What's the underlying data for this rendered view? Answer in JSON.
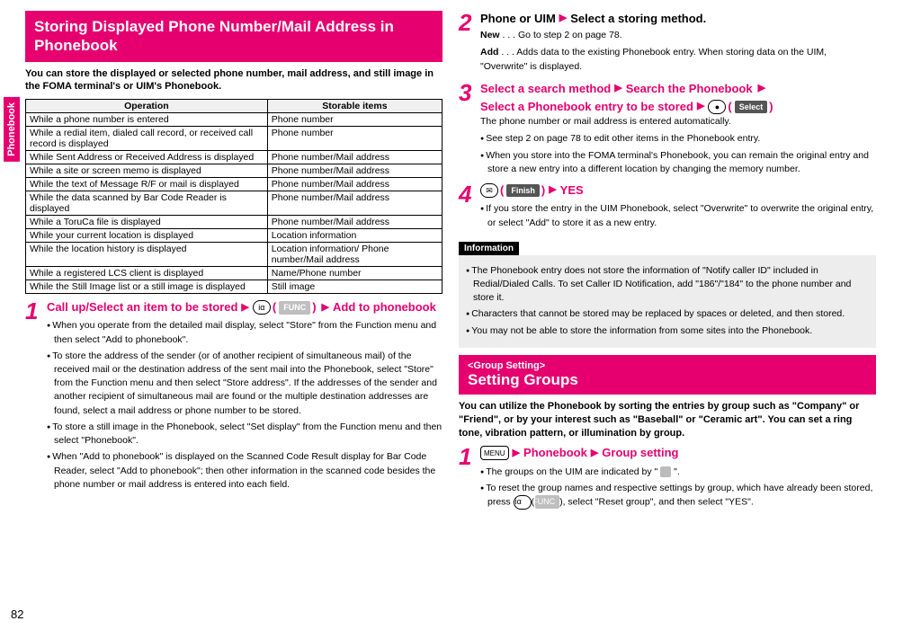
{
  "colors": {
    "brand": "#e6006f",
    "grey_label": "#bfbfbf",
    "info_bg": "#ededed"
  },
  "sideTab": "Phonebook",
  "pageNumber": "82",
  "left": {
    "heading": "Storing Displayed Phone Number/Mail Address in Phonebook",
    "lead": "You can store the displayed or selected phone number, mail address, and still image in the FOMA terminal's or UIM's Phonebook.",
    "table": {
      "headers": [
        "Operation",
        "Storable items"
      ],
      "rows": [
        [
          "While a phone number is entered",
          "Phone number"
        ],
        [
          "While a redial item, dialed call record, or received call record is displayed",
          "Phone number"
        ],
        [
          "While Sent Address or Received Address is displayed",
          "Phone number/Mail address"
        ],
        [
          "While a site or screen memo is displayed",
          "Phone number/Mail address"
        ],
        [
          "While the text of Message R/F or mail is displayed",
          "Phone number/Mail address"
        ],
        [
          "While the data scanned by Bar Code Reader is displayed",
          "Phone number/Mail address"
        ],
        [
          "While a ToruCa file is displayed",
          "Phone number/Mail address"
        ],
        [
          "While your current location is displayed",
          "Location information"
        ],
        [
          "While the location history is displayed",
          "Location information/\nPhone number/Mail address"
        ],
        [
          "While a registered LCS client is displayed",
          "Name/Phone number"
        ],
        [
          "While the Still Image list or a still image is displayed",
          "Still image"
        ]
      ]
    },
    "step1": {
      "num": "1",
      "part1": "Call up/Select an item to be stored",
      "keyGlyph": "iα",
      "keyLabel": "FUNC",
      "part2": "Add to phonebook",
      "bullets": [
        "When you operate from the detailed mail display, select \"Store\" from the Function menu and then select \"Add to phonebook\".",
        "To store the address of the sender (or of another recipient of simultaneous mail) of the received mail or the destination address of the sent mail into the Phonebook, select \"Store\" from the Function menu and then select \"Store address\". If the addresses of the sender and another recipient of simultaneous mail are found or the multiple destination addresses are found, select a mail address or phone number to be stored.",
        "To store a still image in the Phonebook, select \"Set display\" from the Function menu and then select \"Phonebook\".",
        "When \"Add to phonebook\" is displayed on the Scanned Code Result display for Bar Code Reader, select \"Add to phonebook\"; then other information in the scanned code besides the phone number or mail address is entered into each field."
      ]
    }
  },
  "right": {
    "step2": {
      "num": "2",
      "titleA": "Phone or UIM",
      "titleB": "Select a storing method.",
      "defNewLabel": "New",
      "defNewText": " . . . Go to step 2 on page 78.",
      "defAddLabel": "Add",
      "defAddText": " . . . Adds data to the existing Phonebook entry. When storing data on the UIM, \"Overwrite\" is displayed."
    },
    "step3": {
      "num": "3",
      "l1a": "Select a search method",
      "l1b": "Search the Phonebook",
      "l2": "Select a Phonebook entry to be stored",
      "keyGlyph": "●",
      "keyLabel": "Select",
      "sub": "The phone number or mail address is entered automatically.",
      "bullets": [
        "See step 2 on page 78 to edit other items in the Phonebook entry.",
        "When you store into the FOMA terminal's Phonebook, you can remain the original entry and store a new entry into a different location by changing the memory number."
      ]
    },
    "step4": {
      "num": "4",
      "keyGlyph": "✉",
      "keyLabel": "Finish",
      "yes": "YES",
      "bullets": [
        "If you store the entry in the UIM Phonebook, select \"Overwrite\" to overwrite the original entry, or select \"Add\" to store it as a new entry."
      ]
    },
    "infoHead": "Information",
    "infoBullets": [
      "The Phonebook entry does not store the information of \"Notify caller ID\" included in Redial/Dialed Calls. To set Caller ID Notification, add \"186\"/\"184\" to the phone number and store it.",
      "Characters that cannot be stored may be replaced by spaces or deleted, and then stored.",
      "You may not be able to store the information from some sites into the Phonebook."
    ],
    "group": {
      "pre": "<Group Setting>",
      "main": "Setting Groups",
      "lead": "You can utilize the Phonebook by sorting the entries by group such as \"Company\" or \"Friend\", or by your interest such as \"Baseball\" or \"Ceramic art\". You can set a ring tone, vibration pattern, or illumination by group.",
      "step1": {
        "num": "1",
        "menuGlyph": "MENU",
        "a": "Phonebook",
        "b": "Group setting",
        "bulletsA": "The groups on the UIM are indicated by \"",
        "bulletsA2": "\".",
        "bulletB_pre": "To reset the group names and respective settings by group, which have already been stored, press ",
        "funcGlyph": "iα",
        "funcLabel": "FUNC",
        "bulletB_post": ", select \"Reset group\", and then select \"YES\"."
      }
    }
  }
}
